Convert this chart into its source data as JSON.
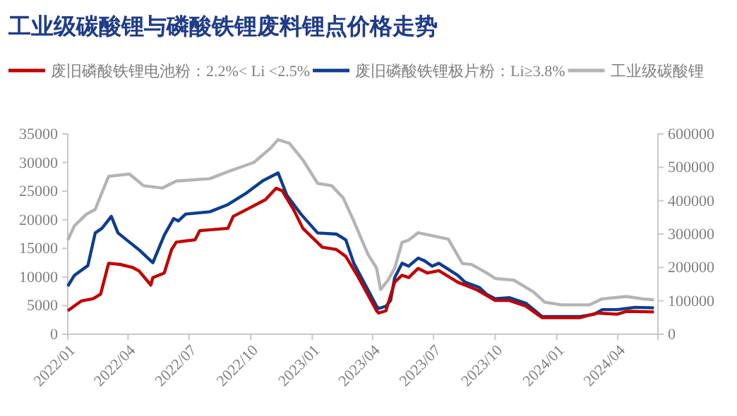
{
  "chart_data": {
    "type": "line",
    "title": "工业级碳酸锂与磷酸铁锂废料锂点价格走势",
    "legend": "top",
    "marker": "none",
    "line_style": "solid",
    "grid": false,
    "xlim": [
      "2022-01-01",
      "2024-05-31"
    ],
    "xticks": [
      {
        "value": "2022-01-01",
        "label": "2022/01"
      },
      {
        "value": "2022-04-01",
        "label": "2022/04"
      },
      {
        "value": "2022-07-01",
        "label": "2022/07"
      },
      {
        "value": "2022-10-01",
        "label": "2022/10"
      },
      {
        "value": "2023-01-01",
        "label": "2023/01"
      },
      {
        "value": "2023-04-01",
        "label": "2023/04"
      },
      {
        "value": "2023-07-01",
        "label": "2023/07"
      },
      {
        "value": "2023-10-01",
        "label": "2023/10"
      },
      {
        "value": "2024-01-01",
        "label": "2024/01"
      },
      {
        "value": "2024-04-01",
        "label": "2024/04"
      }
    ],
    "ylim": [
      0,
      35000
    ],
    "yticks": [
      0,
      5000,
      10000,
      15000,
      20000,
      25000,
      30000,
      35000
    ],
    "y2lim": [
      0,
      600000
    ],
    "y2ticks": [
      0,
      100000,
      200000,
      300000,
      400000,
      500000,
      600000
    ],
    "series": [
      {
        "name": "废旧磷酸铁锂电池粉：2.2%< Li <2.5%",
        "color": "#c00000",
        "x": [
          "2022-01-01",
          "2022-01-21",
          "2022-02-08",
          "2022-02-19",
          "2022-03-03",
          "2022-03-20",
          "2022-04-07",
          "2022-04-17",
          "2022-05-05",
          "2022-05-08",
          "2022-05-25",
          "2022-06-05",
          "2022-06-12",
          "2022-07-10",
          "2022-07-17",
          "2022-08-28",
          "2022-09-05",
          "2022-09-25",
          "2022-10-23",
          "2022-11-08",
          "2022-11-17",
          "2022-12-04",
          "2022-12-18",
          "2023-01-01",
          "2023-01-16",
          "2023-02-06",
          "2023-02-20",
          "2023-03-11",
          "2023-04-07",
          "2023-04-10",
          "2023-04-21",
          "2023-05-04",
          "2023-05-15",
          "2023-05-25",
          "2023-06-08",
          "2023-06-22",
          "2023-07-09",
          "2023-08-06",
          "2023-09-03",
          "2023-10-01",
          "2023-10-22",
          "2023-11-16",
          "2023-12-10",
          "2024-02-05",
          "2024-03-02",
          "2024-03-31",
          "2024-04-14",
          "2024-05-25"
        ],
        "values": [
          4100,
          5800,
          6200,
          7000,
          12400,
          12200,
          11700,
          11100,
          8600,
          9900,
          10700,
          14800,
          16100,
          16500,
          18100,
          18500,
          20600,
          21800,
          23500,
          25500,
          25100,
          21800,
          18500,
          16900,
          15200,
          14800,
          13600,
          9900,
          4100,
          3700,
          4100,
          9100,
          10300,
          9900,
          11500,
          10700,
          11100,
          9100,
          7800,
          5900,
          5900,
          4900,
          2900,
          2900,
          3700,
          3500,
          4000,
          3900
        ]
      },
      {
        "name": "废旧磷酸铁锂极片粉：Li≥3.8%",
        "color": "#0e3d8b",
        "x": [
          "2022-01-01",
          "2022-01-11",
          "2022-01-31",
          "2022-02-11",
          "2022-02-21",
          "2022-03-07",
          "2022-03-17",
          "2022-04-03",
          "2022-04-17",
          "2022-05-08",
          "2022-05-25",
          "2022-06-08",
          "2022-06-15",
          "2022-06-26",
          "2022-08-01",
          "2022-08-28",
          "2022-09-25",
          "2022-10-19",
          "2022-11-11",
          "2022-11-24",
          "2022-12-15",
          "2023-01-09",
          "2023-02-06",
          "2023-02-20",
          "2023-03-04",
          "2023-03-25",
          "2023-04-07",
          "2023-04-10",
          "2023-04-21",
          "2023-04-28",
          "2023-05-04",
          "2023-05-15",
          "2023-05-25",
          "2023-06-08",
          "2023-06-18",
          "2023-06-29",
          "2023-07-09",
          "2023-08-06",
          "2023-08-17",
          "2023-09-07",
          "2023-09-18",
          "2023-10-01",
          "2023-10-22",
          "2023-11-16",
          "2023-12-10",
          "2023-12-24",
          "2024-02-05",
          "2024-02-26",
          "2024-03-09",
          "2024-03-31",
          "2024-04-27",
          "2024-05-25"
        ],
        "values": [
          8400,
          10300,
          12000,
          17700,
          18500,
          20600,
          17700,
          16100,
          14800,
          12500,
          17300,
          20200,
          19800,
          21000,
          21400,
          22650,
          24700,
          26800,
          28200,
          24300,
          21000,
          17700,
          17500,
          16500,
          12400,
          7800,
          4900,
          4500,
          4900,
          5900,
          9900,
          12400,
          11900,
          13300,
          12800,
          11900,
          12400,
          10300,
          9100,
          8200,
          7000,
          6200,
          6400,
          5400,
          3100,
          3100,
          3100,
          3500,
          4300,
          4300,
          4700,
          4600
        ]
      },
      {
        "name": "工业级碳酸锂",
        "color": "#b4b4b4",
        "axis": "y2",
        "x": [
          "2022-01-01",
          "2022-01-11",
          "2022-01-29",
          "2022-02-11",
          "2022-02-21",
          "2022-03-03",
          "2022-04-03",
          "2022-04-24",
          "2022-05-22",
          "2022-06-12",
          "2022-08-01",
          "2022-08-28",
          "2022-10-06",
          "2022-10-31",
          "2022-11-11",
          "2022-11-28",
          "2022-12-18",
          "2023-01-09",
          "2023-01-30",
          "2023-02-16",
          "2023-03-04",
          "2023-03-25",
          "2023-04-07",
          "2023-04-13",
          "2023-04-24",
          "2023-05-04",
          "2023-05-15",
          "2023-05-25",
          "2023-06-08",
          "2023-07-02",
          "2023-07-23",
          "2023-08-13",
          "2023-08-27",
          "2023-09-18",
          "2023-10-01",
          "2023-10-29",
          "2023-11-27",
          "2023-12-14",
          "2024-01-08",
          "2024-02-19",
          "2024-03-09",
          "2024-04-14",
          "2024-05-08",
          "2024-05-25"
        ],
        "values": [
          282000,
          325000,
          360000,
          374000,
          424000,
          473000,
          480000,
          445000,
          438000,
          459000,
          466000,
          487000,
          515000,
          558000,
          583000,
          572000,
          522000,
          452000,
          445000,
          409000,
          339000,
          240000,
          198000,
          134000,
          162000,
          198000,
          275000,
          282000,
          304000,
          294000,
          285000,
          212000,
          209000,
          184000,
          167000,
          162000,
          127000,
          96000,
          88000,
          88000,
          106000,
          113000,
          106000,
          103000
        ]
      }
    ]
  }
}
